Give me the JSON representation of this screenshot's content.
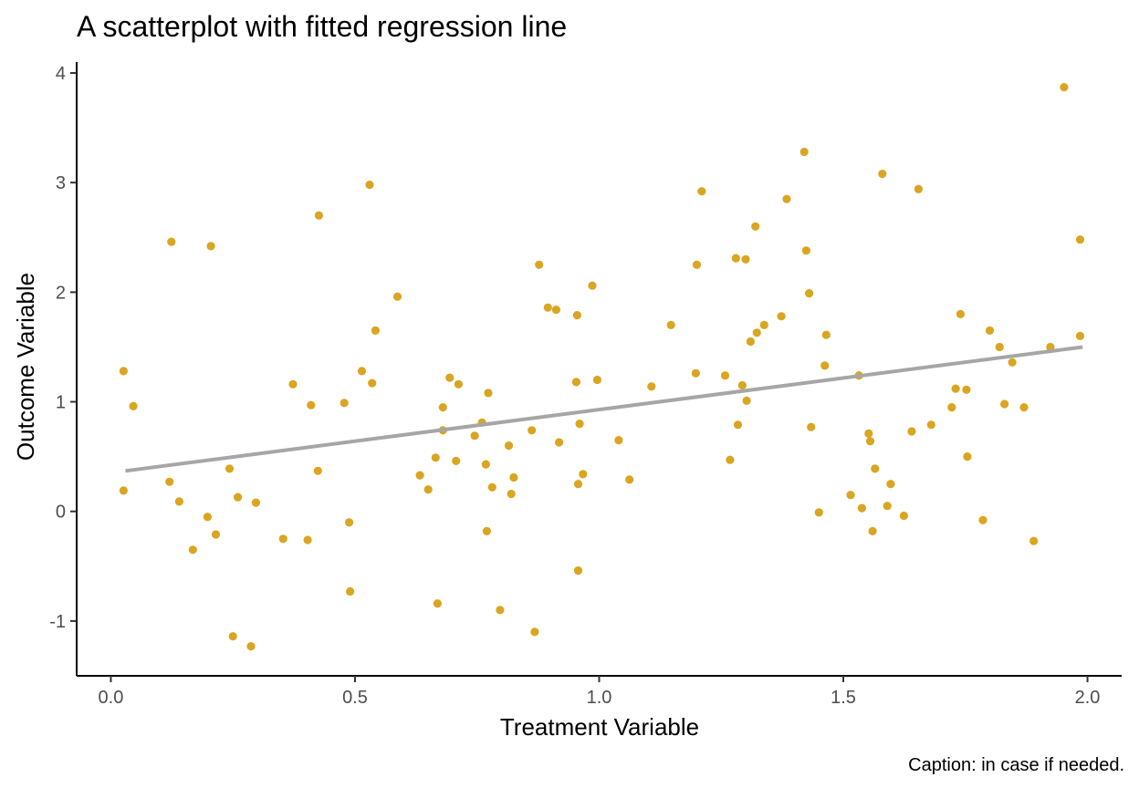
{
  "chart_data": {
    "type": "scatter",
    "title": "A scatterplot with fitted regression line",
    "xlabel": "Treatment Variable",
    "ylabel": "Outcome Variable",
    "caption": "Caption: in case if needed.",
    "xlim": [
      -0.07,
      2.07
    ],
    "ylim": [
      -1.5,
      4.1
    ],
    "x_ticks": [
      0,
      0.5,
      1,
      1.5,
      2
    ],
    "x_tick_labels": [
      "0.0",
      "0.5",
      "1.0",
      "1.5",
      "2.0"
    ],
    "y_ticks": [
      -1,
      0,
      1,
      2,
      3,
      4
    ],
    "y_tick_labels": [
      "-1",
      "0",
      "1",
      "2",
      "3",
      "4"
    ],
    "grid": false,
    "point_color": "#DAA520",
    "line_color": "#A6A6A6",
    "regression_line": {
      "x": [
        0.03,
        1.99
      ],
      "y": [
        0.37,
        1.5
      ]
    },
    "points": [
      [
        0.026,
        1.28
      ],
      [
        0.026,
        0.19
      ],
      [
        0.046,
        0.96
      ],
      [
        0.12,
        0.27
      ],
      [
        0.124,
        2.46
      ],
      [
        0.14,
        0.09
      ],
      [
        0.168,
        -0.35
      ],
      [
        0.198,
        -0.05
      ],
      [
        0.205,
        2.42
      ],
      [
        0.215,
        -0.21
      ],
      [
        0.243,
        0.39
      ],
      [
        0.25,
        -1.14
      ],
      [
        0.26,
        0.13
      ],
      [
        0.287,
        -1.23
      ],
      [
        0.297,
        0.08
      ],
      [
        0.353,
        -0.25
      ],
      [
        0.373,
        1.16
      ],
      [
        0.403,
        -0.26
      ],
      [
        0.41,
        0.97
      ],
      [
        0.424,
        0.37
      ],
      [
        0.426,
        2.7
      ],
      [
        0.478,
        0.99
      ],
      [
        0.488,
        -0.1
      ],
      [
        0.49,
        -0.73
      ],
      [
        0.514,
        1.28
      ],
      [
        0.53,
        2.98
      ],
      [
        0.535,
        1.17
      ],
      [
        0.542,
        1.65
      ],
      [
        0.587,
        1.96
      ],
      [
        0.633,
        0.33
      ],
      [
        0.65,
        0.2
      ],
      [
        0.665,
        0.49
      ],
      [
        0.669,
        -0.84
      ],
      [
        0.68,
        0.95
      ],
      [
        0.68,
        0.74
      ],
      [
        0.694,
        1.22
      ],
      [
        0.707,
        0.46
      ],
      [
        0.712,
        1.16
      ],
      [
        0.745,
        0.69
      ],
      [
        0.76,
        0.81
      ],
      [
        0.768,
        0.43
      ],
      [
        0.77,
        -0.18
      ],
      [
        0.773,
        1.08
      ],
      [
        0.781,
        0.22
      ],
      [
        0.797,
        -0.9
      ],
      [
        0.815,
        0.6
      ],
      [
        0.82,
        0.16
      ],
      [
        0.825,
        0.31
      ],
      [
        0.862,
        0.74
      ],
      [
        0.868,
        -1.1
      ],
      [
        0.877,
        2.25
      ],
      [
        0.895,
        1.86
      ],
      [
        0.912,
        1.84
      ],
      [
        0.918,
        0.63
      ],
      [
        0.953,
        1.18
      ],
      [
        0.955,
        1.79
      ],
      [
        0.957,
        0.25
      ],
      [
        0.957,
        -0.54
      ],
      [
        0.96,
        0.8
      ],
      [
        0.967,
        0.34
      ],
      [
        0.986,
        2.06
      ],
      [
        0.996,
        1.2
      ],
      [
        1.04,
        0.65
      ],
      [
        1.062,
        0.29
      ],
      [
        1.107,
        1.14
      ],
      [
        1.147,
        1.7
      ],
      [
        1.198,
        1.26
      ],
      [
        1.2,
        2.25
      ],
      [
        1.21,
        2.92
      ],
      [
        1.258,
        1.24
      ],
      [
        1.268,
        0.47
      ],
      [
        1.28,
        2.31
      ],
      [
        1.284,
        0.79
      ],
      [
        1.293,
        1.15
      ],
      [
        1.3,
        2.3
      ],
      [
        1.302,
        1.01
      ],
      [
        1.31,
        1.55
      ],
      [
        1.32,
        2.6
      ],
      [
        1.323,
        1.63
      ],
      [
        1.338,
        1.7
      ],
      [
        1.373,
        1.78
      ],
      [
        1.384,
        2.85
      ],
      [
        1.42,
        3.28
      ],
      [
        1.424,
        2.38
      ],
      [
        1.43,
        1.99
      ],
      [
        1.434,
        0.77
      ],
      [
        1.45,
        -0.01
      ],
      [
        1.462,
        1.33
      ],
      [
        1.465,
        1.61
      ],
      [
        1.515,
        0.15
      ],
      [
        1.532,
        1.24
      ],
      [
        1.538,
        0.03
      ],
      [
        1.552,
        0.71
      ],
      [
        1.555,
        0.64
      ],
      [
        1.56,
        -0.18
      ],
      [
        1.565,
        0.39
      ],
      [
        1.58,
        3.08
      ],
      [
        1.59,
        0.05
      ],
      [
        1.597,
        0.25
      ],
      [
        1.624,
        -0.04
      ],
      [
        1.64,
        0.73
      ],
      [
        1.654,
        2.94
      ],
      [
        1.68,
        0.79
      ],
      [
        1.722,
        0.95
      ],
      [
        1.73,
        1.12
      ],
      [
        1.74,
        1.8
      ],
      [
        1.752,
        1.11
      ],
      [
        1.754,
        0.5
      ],
      [
        1.786,
        -0.08
      ],
      [
        1.8,
        1.65
      ],
      [
        1.82,
        1.5
      ],
      [
        1.83,
        0.98
      ],
      [
        1.846,
        1.36
      ],
      [
        1.87,
        0.95
      ],
      [
        1.89,
        -0.27
      ],
      [
        1.924,
        1.5
      ],
      [
        1.952,
        3.87
      ],
      [
        1.985,
        2.48
      ],
      [
        1.985,
        1.6
      ]
    ]
  }
}
